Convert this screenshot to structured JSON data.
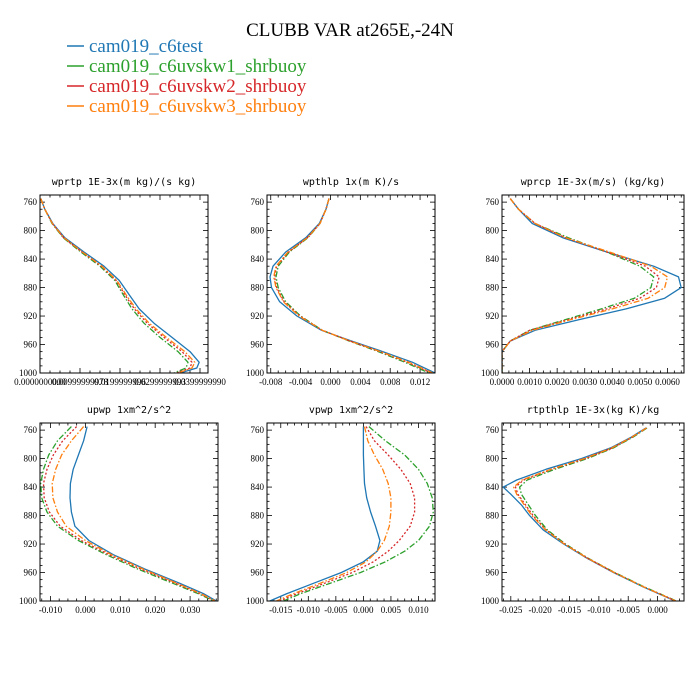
{
  "figure": {
    "title": "CLUBB VAR at265E,-24N",
    "legend": [
      {
        "label": "cam019_c6test",
        "color": "#1f77b4",
        "dash": "solid"
      },
      {
        "label": "cam019_c6uvskw1_shrbuoy",
        "color": "#2ca02c",
        "dash": "dashdot"
      },
      {
        "label": "cam019_c6uvskw2_shrbuoy",
        "color": "#d62728",
        "dash": "dot"
      },
      {
        "label": "cam019_c6uvskw3_shrbuoy",
        "color": "#ff7f0e",
        "dash": "dashdot"
      }
    ]
  },
  "chart_data": [
    {
      "type": "line",
      "title": "wprtp  1E-3x(m kg)/(s kg)",
      "y_axis": "pressure (hPa), reversed",
      "ylim": [
        1000,
        750
      ],
      "yticks": [
        760,
        800,
        840,
        880,
        920,
        960,
        1000
      ],
      "xlim": [
        0.0,
        0.042
      ],
      "xticks": [
        0.0,
        0.01,
        0.02,
        0.03,
        0.04
      ],
      "xtick_labels": [
        "0.0000000000",
        "0.00999999978",
        "0.0199999996",
        "0.0299999993",
        "0.0399999990"
      ],
      "y": [
        755,
        770,
        790,
        810,
        830,
        850,
        870,
        890,
        910,
        930,
        950,
        970,
        985,
        993,
        1000
      ],
      "series": [
        {
          "name": "cam019_c6test",
          "x": [
            0.0002,
            0.0012,
            0.0032,
            0.0062,
            0.011,
            0.016,
            0.0198,
            0.0223,
            0.0248,
            0.0285,
            0.033,
            0.0375,
            0.0398,
            0.0392,
            0.035
          ]
        },
        {
          "name": "cam019_c6uvskw1_shrbuoy",
          "x": [
            0.0002,
            0.0012,
            0.003,
            0.0058,
            0.0102,
            0.015,
            0.0187,
            0.0208,
            0.023,
            0.026,
            0.03,
            0.0345,
            0.037,
            0.0365,
            0.0335
          ]
        },
        {
          "name": "cam019_c6uvskw2_shrbuoy",
          "x": [
            0.0002,
            0.0012,
            0.0031,
            0.0059,
            0.0105,
            0.0153,
            0.019,
            0.0212,
            0.0236,
            0.0268,
            0.031,
            0.0355,
            0.038,
            0.0375,
            0.0342
          ]
        },
        {
          "name": "cam019_c6uvskw3_shrbuoy",
          "x": [
            0.0002,
            0.0012,
            0.0031,
            0.006,
            0.0106,
            0.0155,
            0.0192,
            0.0215,
            0.024,
            0.0273,
            0.0316,
            0.0362,
            0.0387,
            0.038,
            0.0345
          ]
        }
      ]
    },
    {
      "type": "line",
      "title": "wpthlp  1x(m K)/s",
      "y_axis": "pressure (hPa), reversed",
      "ylim": [
        1000,
        750
      ],
      "yticks": [
        760,
        800,
        840,
        880,
        920,
        960,
        1000
      ],
      "xlim": [
        -0.0085,
        0.014
      ],
      "xticks": [
        -0.008,
        -0.004,
        0.0,
        0.004,
        0.008,
        0.012
      ],
      "xtick_labels": [
        "-0.008",
        "-0.004",
        "0.000",
        "0.004",
        "0.008",
        "0.012"
      ],
      "y": [
        755,
        770,
        790,
        810,
        830,
        850,
        865,
        880,
        900,
        920,
        940,
        955,
        970,
        985,
        1000
      ],
      "series": [
        {
          "name": "cam019_c6test",
          "x": [
            -0.0002,
            -0.0006,
            -0.0015,
            -0.0033,
            -0.006,
            -0.0077,
            -0.0081,
            -0.0079,
            -0.0068,
            -0.0045,
            -0.0012,
            0.0028,
            0.007,
            0.011,
            0.014
          ]
        },
        {
          "name": "cam019_c6uvskw1_shrbuoy",
          "x": [
            -0.0002,
            -0.0006,
            -0.0014,
            -0.003,
            -0.0055,
            -0.007,
            -0.0073,
            -0.007,
            -0.006,
            -0.004,
            -0.0011,
            0.0025,
            0.0064,
            0.01,
            0.0132
          ]
        },
        {
          "name": "cam019_c6uvskw2_shrbuoy",
          "x": [
            -0.0002,
            -0.0006,
            -0.0014,
            -0.0031,
            -0.0056,
            -0.0072,
            -0.0075,
            -0.0072,
            -0.0062,
            -0.0041,
            -0.0011,
            0.0026,
            0.0066,
            0.0103,
            0.0135
          ]
        },
        {
          "name": "cam019_c6uvskw3_shrbuoy",
          "x": [
            -0.0002,
            -0.0006,
            -0.0014,
            -0.0031,
            -0.0057,
            -0.0073,
            -0.0076,
            -0.0073,
            -0.0063,
            -0.0042,
            -0.0011,
            0.0026,
            0.0067,
            0.0105,
            0.0137
          ]
        }
      ]
    },
    {
      "type": "line",
      "title": "wprcp  1E-3x(m/s) (kg/kg)",
      "y_axis": "pressure (hPa), reversed",
      "ylim": [
        1000,
        750
      ],
      "yticks": [
        760,
        800,
        840,
        880,
        920,
        960,
        1000
      ],
      "xlim": [
        0.0,
        0.0066
      ],
      "xticks": [
        0.0,
        0.001,
        0.002,
        0.003,
        0.004,
        0.005,
        0.006
      ],
      "xtick_labels": [
        "0.0000",
        "0.0010",
        "0.0020",
        "0.0030",
        "0.0040",
        "0.0050",
        "0.0060"
      ],
      "y": [
        755,
        770,
        790,
        810,
        830,
        850,
        865,
        880,
        895,
        910,
        925,
        940,
        955,
        970,
        985,
        1000
      ],
      "series": [
        {
          "name": "cam019_c6test",
          "x": [
            0.0003,
            0.0006,
            0.0011,
            0.0022,
            0.0038,
            0.0055,
            0.0064,
            0.0065,
            0.0059,
            0.0045,
            0.0028,
            0.0012,
            0.0003,
            0.0,
            0.0,
            0.0
          ]
        },
        {
          "name": "cam019_c6uvskw1_shrbuoy",
          "x": [
            0.0003,
            0.0006,
            0.0012,
            0.0024,
            0.0038,
            0.005,
            0.0055,
            0.0054,
            0.0048,
            0.0036,
            0.0023,
            0.001,
            0.0003,
            0.0,
            0.0,
            0.0
          ]
        },
        {
          "name": "cam019_c6uvskw2_shrbuoy",
          "x": [
            0.0003,
            0.0006,
            0.0012,
            0.0023,
            0.0038,
            0.0052,
            0.0057,
            0.0056,
            0.005,
            0.0038,
            0.0024,
            0.001,
            0.0003,
            0.0,
            0.0,
            0.0
          ]
        },
        {
          "name": "cam019_c6uvskw3_shrbuoy",
          "x": [
            0.0003,
            0.0006,
            0.0012,
            0.0023,
            0.0039,
            0.0054,
            0.006,
            0.0059,
            0.0053,
            0.004,
            0.0025,
            0.0011,
            0.0003,
            0.0,
            0.0,
            0.0
          ]
        }
      ]
    },
    {
      "type": "line",
      "title": "upwp  1xm^2/s^2",
      "y_axis": "pressure (hPa), reversed",
      "ylim": [
        1000,
        750
      ],
      "yticks": [
        760,
        800,
        840,
        880,
        920,
        960,
        1000
      ],
      "xlim": [
        -0.013,
        0.038
      ],
      "xticks": [
        -0.01,
        0.0,
        0.01,
        0.02,
        0.03
      ],
      "xtick_labels": [
        "-0.010",
        "0.000",
        "0.010",
        "0.020",
        "0.030"
      ],
      "y": [
        755,
        775,
        795,
        815,
        835,
        855,
        875,
        895,
        915,
        935,
        955,
        975,
        990,
        1000
      ],
      "series": [
        {
          "name": "cam019_c6test",
          "x": [
            0.0005,
            -0.0005,
            -0.002,
            -0.0035,
            -0.0043,
            -0.0044,
            -0.004,
            -0.003,
            0.001,
            0.008,
            0.017,
            0.027,
            0.034,
            0.0375
          ]
        },
        {
          "name": "cam019_c6uvskw1_shrbuoy",
          "x": [
            -0.004,
            -0.008,
            -0.0105,
            -0.012,
            -0.0128,
            -0.0125,
            -0.011,
            -0.008,
            -0.002,
            0.006,
            0.015,
            0.025,
            0.0325,
            0.0368
          ]
        },
        {
          "name": "cam019_c6uvskw2_shrbuoy",
          "x": [
            -0.0025,
            -0.0065,
            -0.0092,
            -0.011,
            -0.012,
            -0.0118,
            -0.0103,
            -0.0072,
            -0.0012,
            0.0068,
            0.0158,
            0.0258,
            0.033,
            0.037
          ]
        },
        {
          "name": "cam019_c6uvskw3_shrbuoy",
          "x": [
            -0.0005,
            -0.004,
            -0.0068,
            -0.0085,
            -0.0095,
            -0.0093,
            -0.008,
            -0.0055,
            0.0,
            0.0075,
            0.0165,
            0.0262,
            0.0333,
            0.0372
          ]
        }
      ]
    },
    {
      "type": "line",
      "title": "vpwp  1xm^2/s^2",
      "y_axis": "pressure (hPa), reversed",
      "ylim": [
        1000,
        750
      ],
      "yticks": [
        760,
        800,
        840,
        880,
        920,
        960,
        1000
      ],
      "xlim": [
        -0.0175,
        0.013
      ],
      "xticks": [
        -0.015,
        -0.01,
        -0.005,
        0.0,
        0.005,
        0.01
      ],
      "xtick_labels": [
        "-0.015",
        "-0.010",
        "-0.005",
        "0.000",
        "0.005",
        "0.010"
      ],
      "y": [
        755,
        775,
        795,
        815,
        835,
        855,
        875,
        895,
        915,
        930,
        945,
        960,
        975,
        990,
        1000
      ],
      "series": [
        {
          "name": "cam019_c6test",
          "x": [
            0.0,
            0.0,
            0.0,
            0.0001,
            0.0002,
            0.0006,
            0.0013,
            0.0022,
            0.003,
            0.0025,
            0.0,
            -0.004,
            -0.009,
            -0.014,
            -0.017
          ]
        },
        {
          "name": "cam019_c6uvskw1_shrbuoy",
          "x": [
            0.001,
            0.004,
            0.0075,
            0.01,
            0.0116,
            0.0125,
            0.0127,
            0.012,
            0.01,
            0.0075,
            0.004,
            -0.0005,
            -0.006,
            -0.0115,
            -0.0145
          ]
        },
        {
          "name": "cam019_c6uvskw2_shrbuoy",
          "x": [
            0.0005,
            0.002,
            0.0045,
            0.0068,
            0.0085,
            0.0093,
            0.0093,
            0.0085,
            0.0065,
            0.0045,
            0.0018,
            -0.002,
            -0.007,
            -0.0122,
            -0.0152
          ]
        },
        {
          "name": "cam019_c6uvskw3_shrbuoy",
          "x": [
            0.0002,
            0.0008,
            0.002,
            0.0035,
            0.0045,
            0.005,
            0.005,
            0.0047,
            0.0038,
            0.0025,
            0.0005,
            -0.003,
            -0.0078,
            -0.0128,
            -0.0158
          ]
        }
      ]
    },
    {
      "type": "line",
      "title": "rtpthlp  1E-3x(kg K)/kg",
      "y_axis": "pressure (hPa), reversed",
      "ylim": [
        1000,
        750
      ],
      "yticks": [
        760,
        800,
        840,
        880,
        920,
        960,
        1000
      ],
      "xlim": [
        -0.0265,
        0.0045
      ],
      "xticks": [
        -0.025,
        -0.02,
        -0.015,
        -0.01,
        -0.005,
        0.0
      ],
      "xtick_labels": [
        "-0.025",
        "-0.020",
        "-0.015",
        "-0.010",
        "-0.005",
        "0.000"
      ],
      "y": [
        757,
        770,
        785,
        800,
        815,
        830,
        840,
        850,
        865,
        880,
        900,
        920,
        940,
        960,
        980,
        1000
      ],
      "series": [
        {
          "name": "cam019_c6test",
          "x": [
            -0.002,
            -0.0045,
            -0.008,
            -0.013,
            -0.019,
            -0.024,
            -0.0263,
            -0.025,
            -0.0232,
            -0.0218,
            -0.0195,
            -0.016,
            -0.012,
            -0.0075,
            -0.0025,
            0.003
          ]
        },
        {
          "name": "cam019_c6uvskw1_shrbuoy",
          "x": [
            -0.0018,
            -0.0042,
            -0.0075,
            -0.012,
            -0.0175,
            -0.0222,
            -0.0235,
            -0.0232,
            -0.022,
            -0.0208,
            -0.0188,
            -0.0157,
            -0.0118,
            -0.0073,
            -0.0023,
            0.0032
          ]
        },
        {
          "name": "cam019_c6uvskw2_shrbuoy",
          "x": [
            -0.0019,
            -0.0043,
            -0.0077,
            -0.0123,
            -0.018,
            -0.0228,
            -0.0242,
            -0.0238,
            -0.0225,
            -0.0212,
            -0.019,
            -0.0158,
            -0.0119,
            -0.0074,
            -0.0024,
            0.0031
          ]
        },
        {
          "name": "cam019_c6uvskw3_shrbuoy",
          "x": [
            -0.0019,
            -0.0044,
            -0.0078,
            -0.0125,
            -0.0182,
            -0.0231,
            -0.0245,
            -0.024,
            -0.0227,
            -0.0214,
            -0.0191,
            -0.0159,
            -0.0119,
            -0.0074,
            -0.0024,
            0.0031
          ]
        }
      ]
    }
  ]
}
